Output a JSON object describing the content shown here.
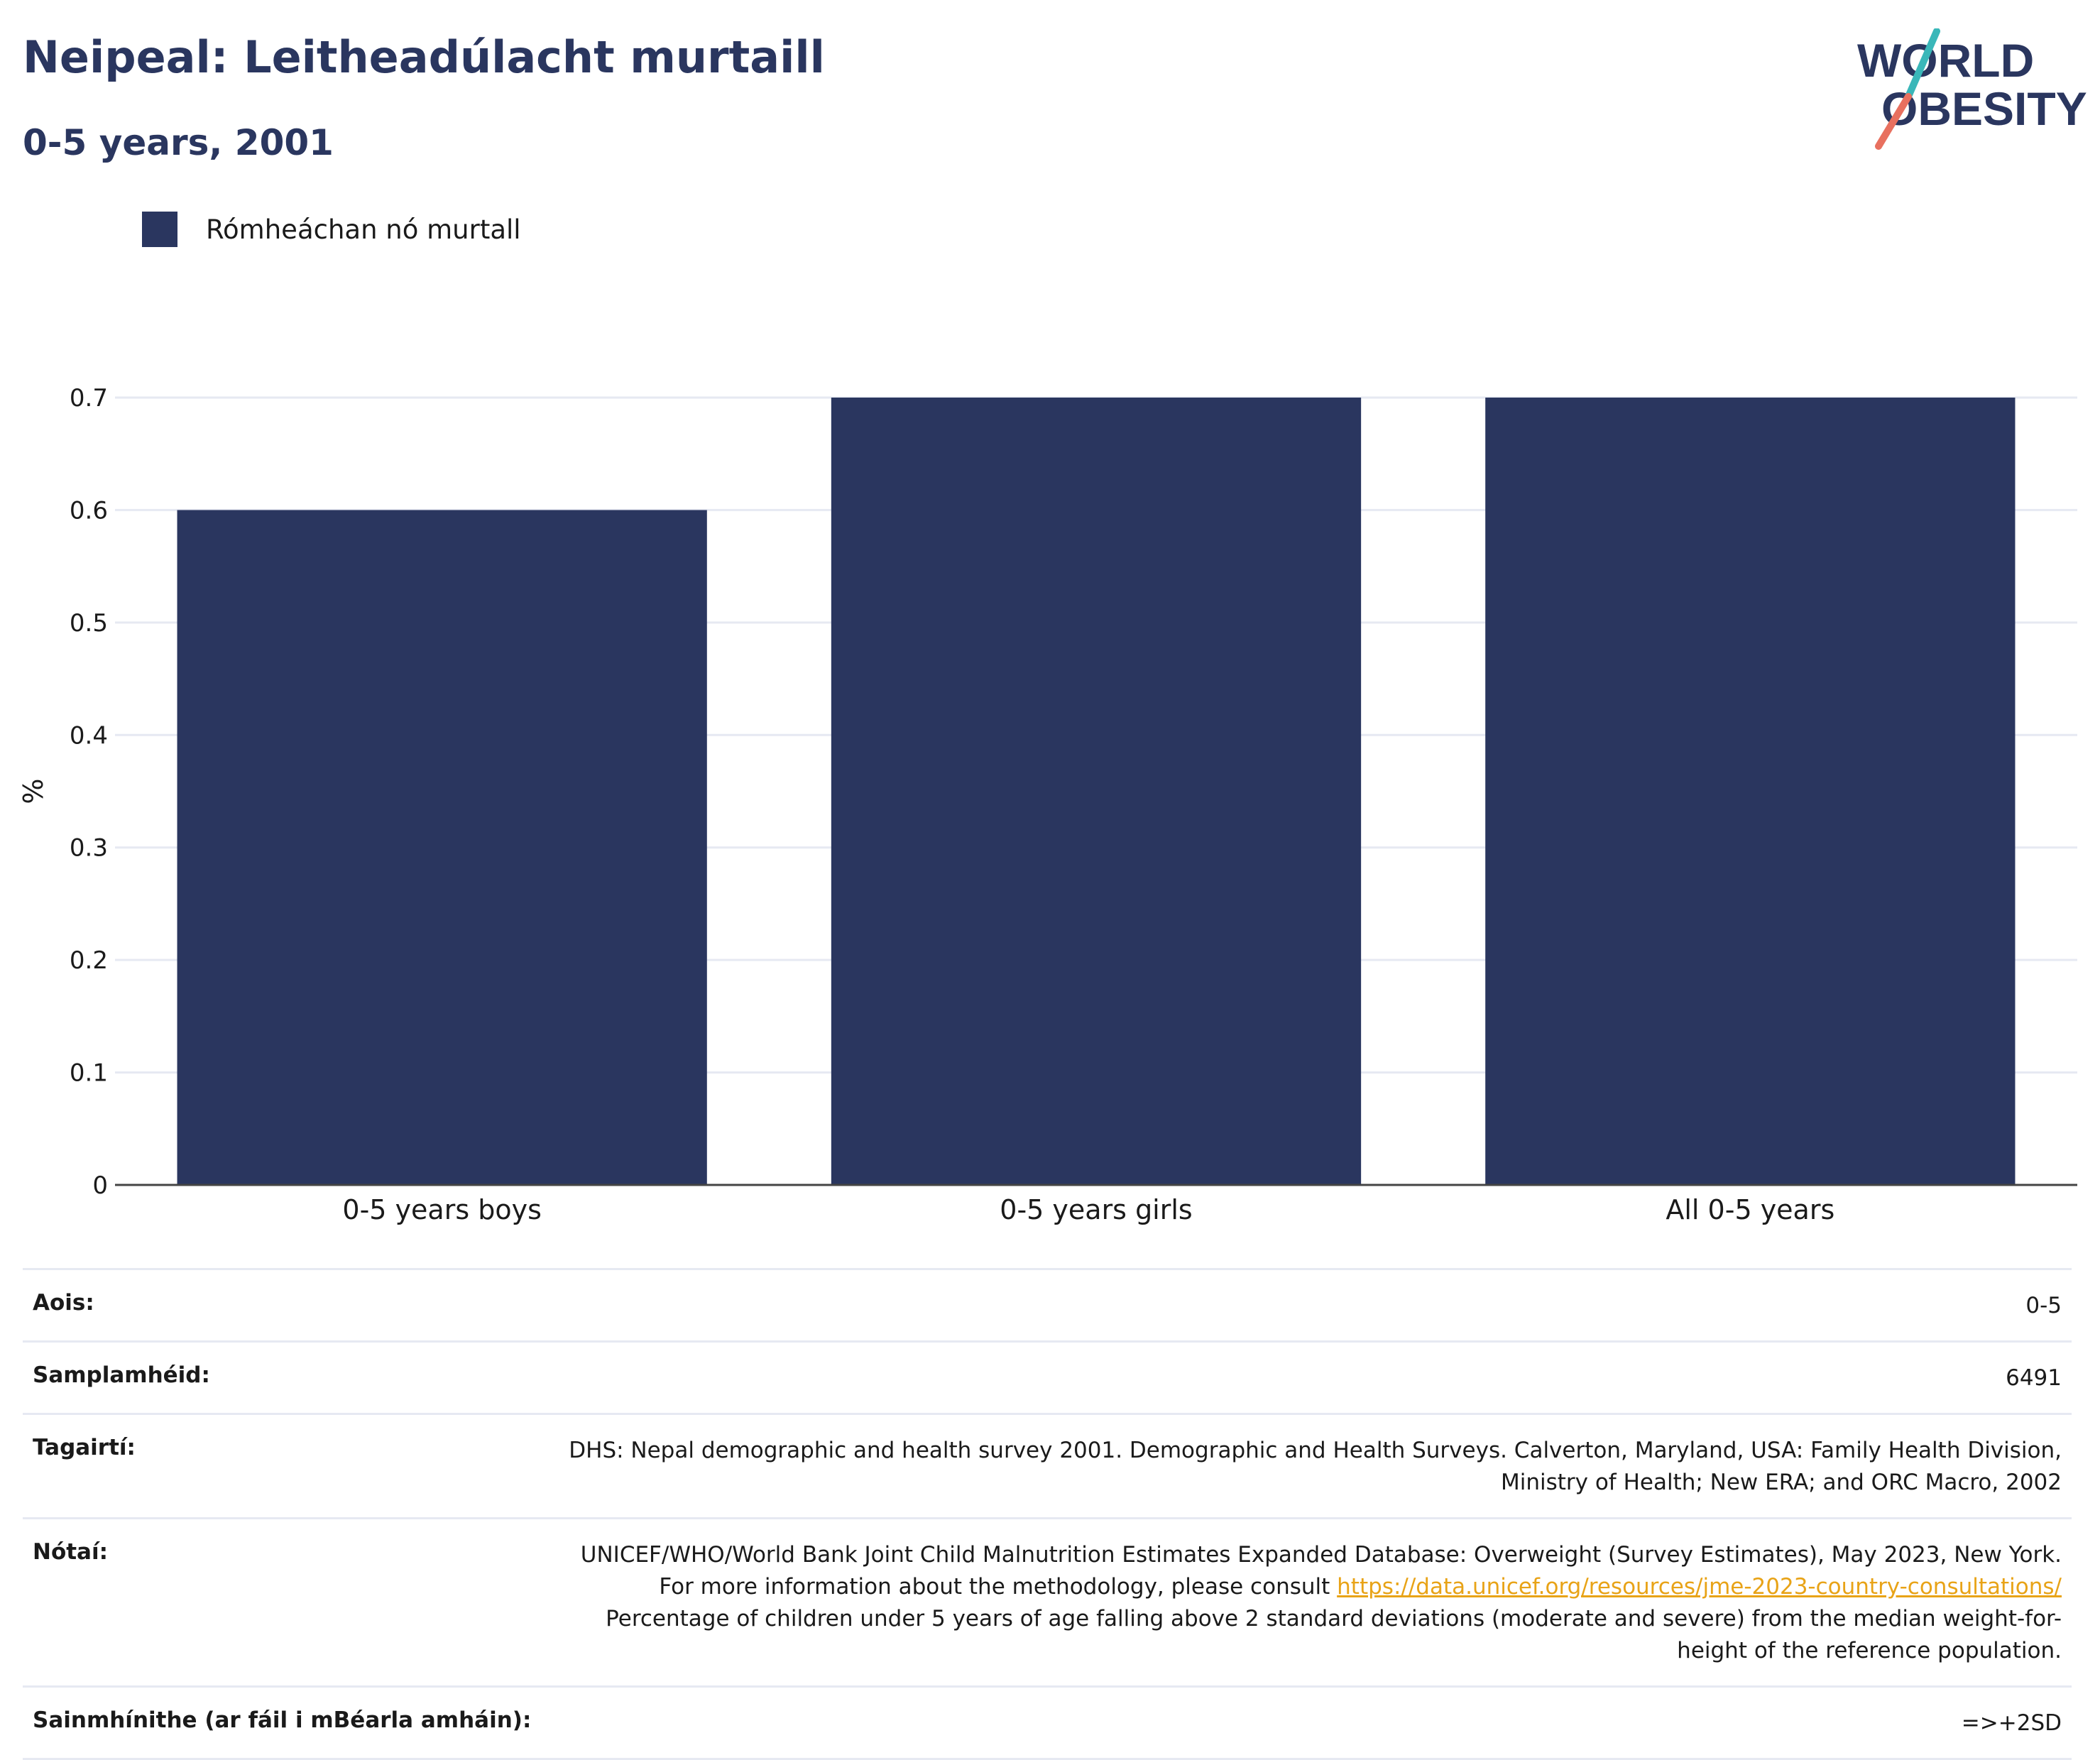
{
  "header": {
    "title": "Neipeal: Leitheadúlacht murtaill",
    "subtitle": "0-5 years, 2001"
  },
  "logo": {
    "line1": "WORLD",
    "line2": "OBESITY"
  },
  "legend": {
    "label": "Rómheáchan nó murtall"
  },
  "chart_data": {
    "type": "bar",
    "categories": [
      "0-5 years boys",
      "0-5 years girls",
      "All 0-5 years"
    ],
    "series": [
      {
        "name": "Rómheáchan nó murtall",
        "values": [
          0.6,
          0.7,
          0.7
        ]
      }
    ],
    "ylabel": "%",
    "ylim": [
      0,
      0.7
    ],
    "yticks": [
      "0",
      "0.1",
      "0.2",
      "0.3",
      "0.4",
      "0.5",
      "0.6",
      "0.7"
    ],
    "grid": true,
    "legend_position": "top-left",
    "bar_color": "#2a365f"
  },
  "meta": {
    "age_label": "Aois:",
    "age_value": "0-5",
    "sample_label": "Samplamhéid:",
    "sample_value": "6491",
    "references_label": "Tagairtí:",
    "references_value": "DHS: Nepal demographic and health survey 2001. Demographic and Health Surveys. Calverton, Maryland, USA: Family Health Division, Ministry of Health; New ERA; and ORC Macro, 2002",
    "notes_label": "Nótaí:",
    "notes_value_1": "UNICEF/WHO/World Bank Joint Child Malnutrition Estimates Expanded Database: Overweight (Survey Estimates), May 2023, New York. For more information about the methodology, please consult",
    "notes_link": "https://data.unicef.org/resources/jme-2023-country-consultations/",
    "notes_value_2": "Percentage of children under 5 years of age falling above 2 standard deviations (moderate and severe) from the median weight-for-height of the reference population.",
    "definitions_label": "Sainmhínithe (ar fáil i mBéarla amháin):",
    "definitions_value": "=>+2SD"
  },
  "colors": {
    "primary": "#2a365f",
    "accent_teal": "#3ab7b9",
    "accent_coral": "#e8705f",
    "link": "#e8a317"
  }
}
